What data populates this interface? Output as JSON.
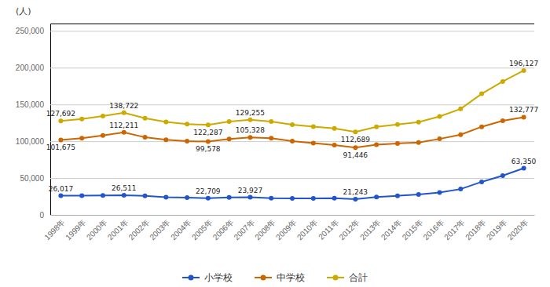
{
  "chart_data": {
    "type": "line",
    "y_label": "(人)",
    "categories": [
      "1998年",
      "1999年",
      "2000年",
      "2001年",
      "2002年",
      "2003年",
      "2004年",
      "2005年",
      "2006年",
      "2007年",
      "2008年",
      "2009年",
      "2010年",
      "2011年",
      "2012年",
      "2013年",
      "2014年",
      "2015年",
      "2016年",
      "2017年",
      "2018年",
      "2019年",
      "2020年"
    ],
    "series": [
      {
        "name": "小学校",
        "color": "#2255cc",
        "values": [
          26017,
          26047,
          26373,
          26511,
          25869,
          24077,
          23318,
          22709,
          23825,
          23927,
          22652,
          22327,
          22463,
          22622,
          21243,
          24175,
          25864,
          27583,
          30448,
          35032,
          44841,
          53350,
          63350
        ],
        "value_labels": [
          "26,017",
          null,
          null,
          "26,511",
          null,
          null,
          null,
          "22,709",
          null,
          "23,927",
          null,
          null,
          null,
          null,
          "21,243",
          null,
          null,
          null,
          null,
          null,
          null,
          null,
          "63,350"
        ]
      },
      {
        "name": "中学校",
        "color": "#cc6600",
        "values": [
          101675,
          104180,
          107913,
          112211,
          105383,
          102149,
          100040,
          99578,
          103069,
          105328,
          104153,
          100105,
          97428,
          94836,
          91446,
          95442,
          97033,
          98408,
          103235,
          108999,
          119687,
          127922,
          132777
        ],
        "value_labels": [
          "101,675",
          null,
          null,
          "112,211",
          null,
          null,
          null,
          "99,578",
          null,
          "105,328",
          null,
          null,
          null,
          null,
          "91,446",
          null,
          null,
          null,
          null,
          null,
          null,
          null,
          "132,777"
        ]
      },
      {
        "name": "合計",
        "color": "#ccaa00",
        "values": [
          127692,
          130227,
          134286,
          138722,
          131252,
          126226,
          123358,
          122287,
          126894,
          129255,
          126805,
          122432,
          119891,
          117458,
          112689,
          119617,
          122897,
          125991,
          133683,
          144031,
          164528,
          181272,
          196127
        ],
        "value_labels": [
          "127,692",
          null,
          null,
          "138,722",
          null,
          null,
          null,
          "122,287",
          null,
          "129,255",
          null,
          null,
          null,
          null,
          "112,689",
          null,
          null,
          null,
          null,
          null,
          null,
          null,
          "196,127"
        ]
      }
    ],
    "ylim": [
      0,
      260000
    ],
    "yticks": [
      0,
      {
        "value": 50000,
        "label": "50,000"
      },
      {
        "value": 100000,
        "label": "100,000"
      },
      {
        "value": 150000,
        "label": "150,000"
      },
      {
        "value": 200000,
        "label": "200,000"
      },
      {
        "value": 250000,
        "label": "250,000"
      }
    ],
    "marker": "circle",
    "data_labels": true,
    "grid": true,
    "legend": "bottom"
  }
}
